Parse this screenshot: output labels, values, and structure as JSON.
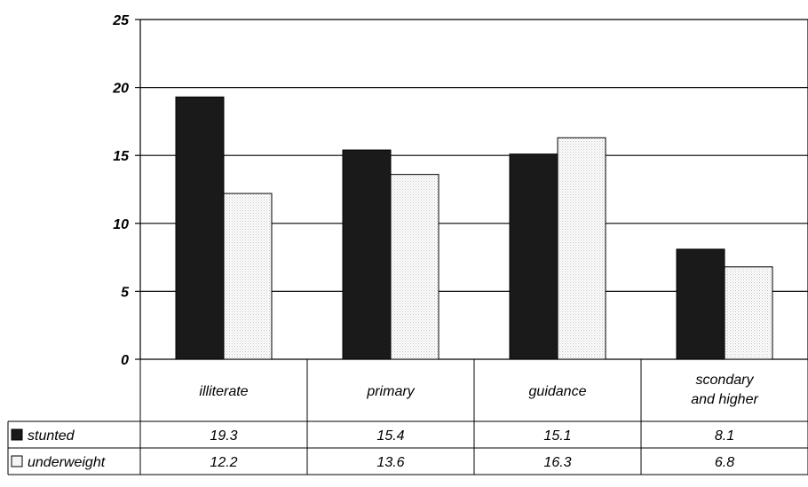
{
  "chart_data": {
    "type": "bar",
    "categories": [
      "illiterate",
      "primary",
      "guidance",
      "scondary and higher"
    ],
    "series": [
      {
        "name": "stunted",
        "values": [
          19.3,
          15.4,
          15.1,
          8.1
        ],
        "color": "#1a1a1a",
        "marker": "■"
      },
      {
        "name": "underweight",
        "values": [
          12.2,
          13.6,
          16.3,
          6.8
        ],
        "color": "#f4f4f4",
        "marker": "□"
      }
    ],
    "ylim": [
      0,
      25
    ],
    "yticks": [
      "0",
      "5",
      "10",
      "15",
      "20",
      "25"
    ],
    "grid": true,
    "legend": "data-table",
    "data_table": {
      "rows": [
        {
          "label": "stunted",
          "cells": [
            "19.3",
            "15.4",
            "15.1",
            "8.1"
          ]
        },
        {
          "label": "underweight",
          "cells": [
            "12.2",
            "13.6",
            "16.3",
            "6.8"
          ]
        }
      ]
    }
  }
}
